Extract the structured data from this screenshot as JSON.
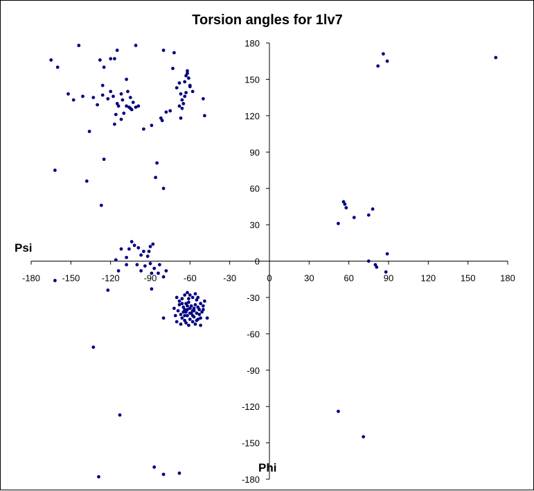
{
  "chart_data": {
    "type": "scatter",
    "title": "Torsion angles for 1lv7",
    "xlabel": "Phi",
    "ylabel": "Psi",
    "xlim": [
      -180,
      180
    ],
    "ylim": [
      -180,
      180
    ],
    "x_ticks": [
      "-180",
      "-150",
      "-120",
      "-90",
      "-60",
      "-30",
      "0",
      "30",
      "60",
      "90",
      "120",
      "150",
      "180"
    ],
    "y_ticks": [
      "180",
      "150",
      "120",
      "90",
      "60",
      "30",
      "0",
      "-30",
      "-60",
      "-90",
      "-120",
      "-150",
      "-180"
    ],
    "grid": false,
    "marker_color": "#000080",
    "series": [
      {
        "points": [
          [
            -165,
            166
          ],
          [
            -160,
            160
          ],
          [
            -144,
            178
          ],
          [
            -101,
            178
          ],
          [
            -128,
            166
          ],
          [
            -120,
            167
          ],
          [
            -115,
            174
          ],
          [
            -117,
            167
          ],
          [
            -80,
            174
          ],
          [
            -72,
            172
          ],
          [
            -125,
            160
          ],
          [
            -108,
            150
          ],
          [
            -152,
            138
          ],
          [
            -148,
            133
          ],
          [
            -141,
            136
          ],
          [
            -133,
            135
          ],
          [
            -130,
            129
          ],
          [
            -126,
            145
          ],
          [
            -126,
            137
          ],
          [
            -122,
            134
          ],
          [
            -120,
            140
          ],
          [
            -118,
            136
          ],
          [
            -115,
            130
          ],
          [
            -112,
            138
          ],
          [
            -111,
            133
          ],
          [
            -107,
            140
          ],
          [
            -105,
            135
          ],
          [
            -103,
            131
          ],
          [
            -101,
            127
          ],
          [
            -99,
            128
          ],
          [
            -105,
            126
          ],
          [
            -108,
            128
          ],
          [
            -110,
            122
          ],
          [
            -114,
            128
          ],
          [
            -116,
            121
          ],
          [
            -112,
            117
          ],
          [
            -117,
            113
          ],
          [
            -106,
            127
          ],
          [
            -104,
            125
          ],
          [
            -136,
            107
          ],
          [
            -95,
            109
          ],
          [
            -89,
            112
          ],
          [
            -82,
            118
          ],
          [
            -81,
            116
          ],
          [
            -78,
            123
          ],
          [
            -75,
            124
          ],
          [
            -73,
            159
          ],
          [
            -70,
            143
          ],
          [
            -68,
            147
          ],
          [
            -67,
            138
          ],
          [
            -66,
            133
          ],
          [
            -64,
            148
          ],
          [
            -63,
            153
          ],
          [
            -62,
            155
          ],
          [
            -62,
            157
          ],
          [
            -61,
            151
          ],
          [
            -60,
            144
          ],
          [
            -60,
            145
          ],
          [
            -58,
            140
          ],
          [
            -64,
            136
          ],
          [
            -63,
            139
          ],
          [
            -65,
            130
          ],
          [
            -66,
            126
          ],
          [
            -67,
            118
          ],
          [
            -68,
            128
          ],
          [
            -50,
            134
          ],
          [
            -49,
            120
          ],
          [
            -162,
            75
          ],
          [
            -125,
            84
          ],
          [
            -138,
            66
          ],
          [
            -85,
            81
          ],
          [
            -86,
            69
          ],
          [
            -80,
            60
          ],
          [
            -127,
            46
          ],
          [
            -106,
            10
          ],
          [
            -104,
            16
          ],
          [
            -102,
            13
          ],
          [
            -99,
            11
          ],
          [
            -95,
            8
          ],
          [
            -97,
            5
          ],
          [
            -92,
            4
          ],
          [
            -90,
            12
          ],
          [
            -88,
            14
          ],
          [
            -91,
            8
          ],
          [
            -108,
            3
          ],
          [
            -112,
            10
          ],
          [
            -116,
            1
          ],
          [
            -114,
            -8
          ],
          [
            -108,
            -3
          ],
          [
            -100,
            -3
          ],
          [
            -97,
            -8
          ],
          [
            -94,
            -4
          ],
          [
            -90,
            -2
          ],
          [
            -89,
            -10
          ],
          [
            -87,
            -6
          ],
          [
            -84,
            -10
          ],
          [
            -83,
            -3
          ],
          [
            -78,
            -8
          ],
          [
            -80,
            -13
          ],
          [
            -89,
            -23
          ],
          [
            -162,
            -16
          ],
          [
            -122,
            -24
          ],
          [
            -70,
            -30
          ],
          [
            -68,
            -33
          ],
          [
            -66,
            -35
          ],
          [
            -65,
            -38
          ],
          [
            -64,
            -40
          ],
          [
            -63,
            -42
          ],
          [
            -62,
            -37
          ],
          [
            -61,
            -34
          ],
          [
            -60,
            -39
          ],
          [
            -59,
            -43
          ],
          [
            -58,
            -45
          ],
          [
            -57,
            -41
          ],
          [
            -56,
            -36
          ],
          [
            -55,
            -32
          ],
          [
            -54,
            -38
          ],
          [
            -53,
            -44
          ],
          [
            -52,
            -47
          ],
          [
            -51,
            -42
          ],
          [
            -50,
            -37
          ],
          [
            -49,
            -33
          ],
          [
            -69,
            -41
          ],
          [
            -67,
            -44
          ],
          [
            -66,
            -47
          ],
          [
            -64,
            -49
          ],
          [
            -62,
            -45
          ],
          [
            -60,
            -48
          ],
          [
            -58,
            -50
          ],
          [
            -56,
            -52
          ],
          [
            -54,
            -48
          ],
          [
            -52,
            -53
          ],
          [
            -68,
            -36
          ],
          [
            -66,
            -31
          ],
          [
            -64,
            -28
          ],
          [
            -62,
            -26
          ],
          [
            -60,
            -28
          ],
          [
            -58,
            -30
          ],
          [
            -56,
            -27
          ],
          [
            -54,
            -30
          ],
          [
            -52,
            -35
          ],
          [
            -50,
            -40
          ],
          [
            -47,
            -47
          ],
          [
            -72,
            -39
          ],
          [
            -71,
            -45
          ],
          [
            -70,
            -50
          ],
          [
            -67,
            -52
          ],
          [
            -63,
            -51
          ],
          [
            -61,
            -53
          ],
          [
            -57,
            -46
          ],
          [
            -55,
            -43
          ],
          [
            -53,
            -40
          ],
          [
            -65,
            -42
          ],
          [
            -63,
            -35
          ],
          [
            -61,
            -31
          ],
          [
            -59,
            -37
          ],
          [
            -57,
            -39
          ],
          [
            -55,
            -49
          ],
          [
            -60,
            -43
          ],
          [
            -62,
            -40
          ],
          [
            -58,
            -41
          ],
          [
            -64,
            -45
          ],
          [
            -80,
            -47
          ],
          [
            -133,
            -71
          ],
          [
            -113,
            -127
          ],
          [
            -129,
            -178
          ],
          [
            -87,
            -170
          ],
          [
            -80,
            -176
          ],
          [
            -68,
            -175
          ],
          [
            86,
            171
          ],
          [
            89,
            165
          ],
          [
            82,
            161
          ],
          [
            171,
            168
          ],
          [
            56,
            49
          ],
          [
            57,
            47
          ],
          [
            58,
            44
          ],
          [
            64,
            36
          ],
          [
            75,
            38
          ],
          [
            78,
            43
          ],
          [
            52,
            31
          ],
          [
            75,
            0
          ],
          [
            80,
            -3
          ],
          [
            81,
            -5
          ],
          [
            89,
            6
          ],
          [
            88,
            -9
          ],
          [
            52,
            -124
          ],
          [
            71,
            -145
          ]
        ]
      }
    ]
  }
}
